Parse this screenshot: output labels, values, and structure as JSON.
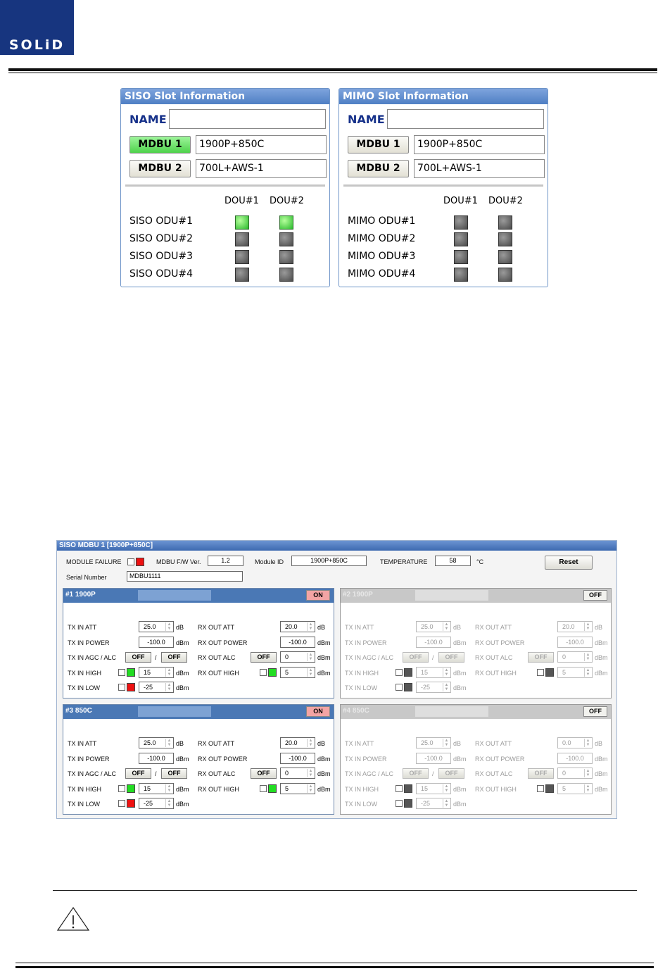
{
  "logo": {
    "text": "SOLiD"
  },
  "siso_panel": {
    "title": "SISO Slot Information",
    "name_label": "NAME",
    "name_value": "",
    "buttons": [
      {
        "label": "MDBU 1",
        "value": "1900P+850C",
        "active": true
      },
      {
        "label": "MDBU 2",
        "value": "700L+AWS-1",
        "active": false
      }
    ],
    "dou_headers": [
      "DOU#1",
      "DOU#2"
    ],
    "rows": [
      {
        "label": "SISO ODU#1",
        "dou1": "green",
        "dou2": "green"
      },
      {
        "label": "SISO ODU#2",
        "dou1": "grey",
        "dou2": "grey"
      },
      {
        "label": "SISO ODU#3",
        "dou1": "grey",
        "dou2": "grey"
      },
      {
        "label": "SISO ODU#4",
        "dou1": "grey",
        "dou2": "grey"
      }
    ]
  },
  "mimo_panel": {
    "title": "MIMO Slot Information",
    "name_label": "NAME",
    "name_value": "",
    "buttons": [
      {
        "label": "MDBU 1",
        "value": "1900P+850C",
        "active": false
      },
      {
        "label": "MDBU 2",
        "value": "700L+AWS-1",
        "active": false
      }
    ],
    "dou_headers": [
      "DOU#1",
      "DOU#2"
    ],
    "rows": [
      {
        "label": "MIMO ODU#1",
        "dou1": "grey",
        "dou2": "grey"
      },
      {
        "label": "MIMO ODU#2",
        "dou1": "grey",
        "dou2": "grey"
      },
      {
        "label": "MIMO ODU#3",
        "dou1": "grey",
        "dou2": "grey"
      },
      {
        "label": "MIMO ODU#4",
        "dou1": "grey",
        "dou2": "grey"
      }
    ]
  },
  "module": {
    "title": "SISO MDBU 1 [1900P+850C]",
    "module_failure_label": "MODULE FAILURE",
    "fw_label": "MDBU F/W Ver.",
    "fw_value": "1.2",
    "module_id_label": "Module ID",
    "module_id_value": "1900P+850C",
    "temperature_label": "TEMPERATURE",
    "temperature_value": "58",
    "temperature_unit": "°C",
    "reset_label": "Reset",
    "serial_label": "Serial Number",
    "serial_value": "MDBU1111",
    "labels": {
      "tx_in_att": "TX IN ATT",
      "tx_in_power": "TX IN POWER",
      "tx_in_agc": "TX IN AGC / ALC",
      "tx_in_high": "TX IN HIGH",
      "tx_in_low": "TX IN LOW",
      "rx_out_att": "RX OUT ATT",
      "rx_out_power": "RX OUT POWER",
      "rx_out_alc": "RX OUT ALC",
      "rx_out_high": "RX OUT HIGH",
      "slash": "/",
      "off": "OFF",
      "unit_db": "dB",
      "unit_dbm": "dBm"
    },
    "subpanels": [
      {
        "title": "#1 1900P",
        "state": "ON",
        "tx_in_att": "25.0",
        "tx_in_power": "-100.0",
        "tx_in_high": "15",
        "tx_in_low": "-25",
        "rx_out_att": "20.0",
        "rx_out_power": "-100.0",
        "rx_out_alc": "0",
        "rx_out_high": "5"
      },
      {
        "title": "#2 1900P",
        "state": "OFF",
        "tx_in_att": "25.0",
        "tx_in_power": "-100.0",
        "tx_in_high": "15",
        "tx_in_low": "-25",
        "rx_out_att": "20.0",
        "rx_out_power": "-100.0",
        "rx_out_alc": "0",
        "rx_out_high": "5"
      },
      {
        "title": "#3 850C",
        "state": "ON",
        "tx_in_att": "25.0",
        "tx_in_power": "-100.0",
        "tx_in_high": "15",
        "tx_in_low": "-25",
        "rx_out_att": "20.0",
        "rx_out_power": "-100.0",
        "rx_out_alc": "0",
        "rx_out_high": "5"
      },
      {
        "title": "#4 850C",
        "state": "OFF",
        "tx_in_att": "25.0",
        "tx_in_power": "-100.0",
        "tx_in_high": "15",
        "tx_in_low": "-25",
        "rx_out_att": "0.0",
        "rx_out_power": "-100.0",
        "rx_out_alc": "0",
        "rx_out_high": "5"
      }
    ]
  },
  "warning_icon": "warning-triangle-icon",
  "colors": {
    "brand_blue": "#17357f",
    "panel_title": "#4f7fc4",
    "led_green": "#29b92c",
    "alarm_red": "#ee1111",
    "on_badge": "#f3a4a4"
  }
}
